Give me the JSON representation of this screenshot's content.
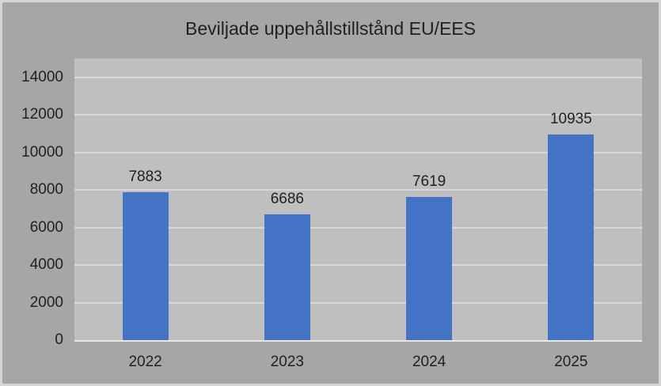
{
  "chart_data": {
    "type": "bar",
    "title": "Beviljade uppehållstillstånd EU/EES",
    "categories": [
      "2022",
      "2023",
      "2024",
      "2025"
    ],
    "values": [
      7883,
      6686,
      7619,
      10935
    ],
    "xlabel": "",
    "ylabel": "",
    "ylim": [
      0,
      15000
    ],
    "yticks": [
      0,
      2000,
      4000,
      6000,
      8000,
      10000,
      12000,
      14000
    ],
    "grid": true,
    "legend": false,
    "data_labels_shown": true
  },
  "colors": {
    "bar": "#4472C4",
    "chart_background": "#A6A6A6",
    "plot_background": "#BFBFBF",
    "gridline": "#D9D9D9",
    "axis_line": "#E8E8E8",
    "text": "#212121",
    "frame_border": "#D6D6D6"
  }
}
